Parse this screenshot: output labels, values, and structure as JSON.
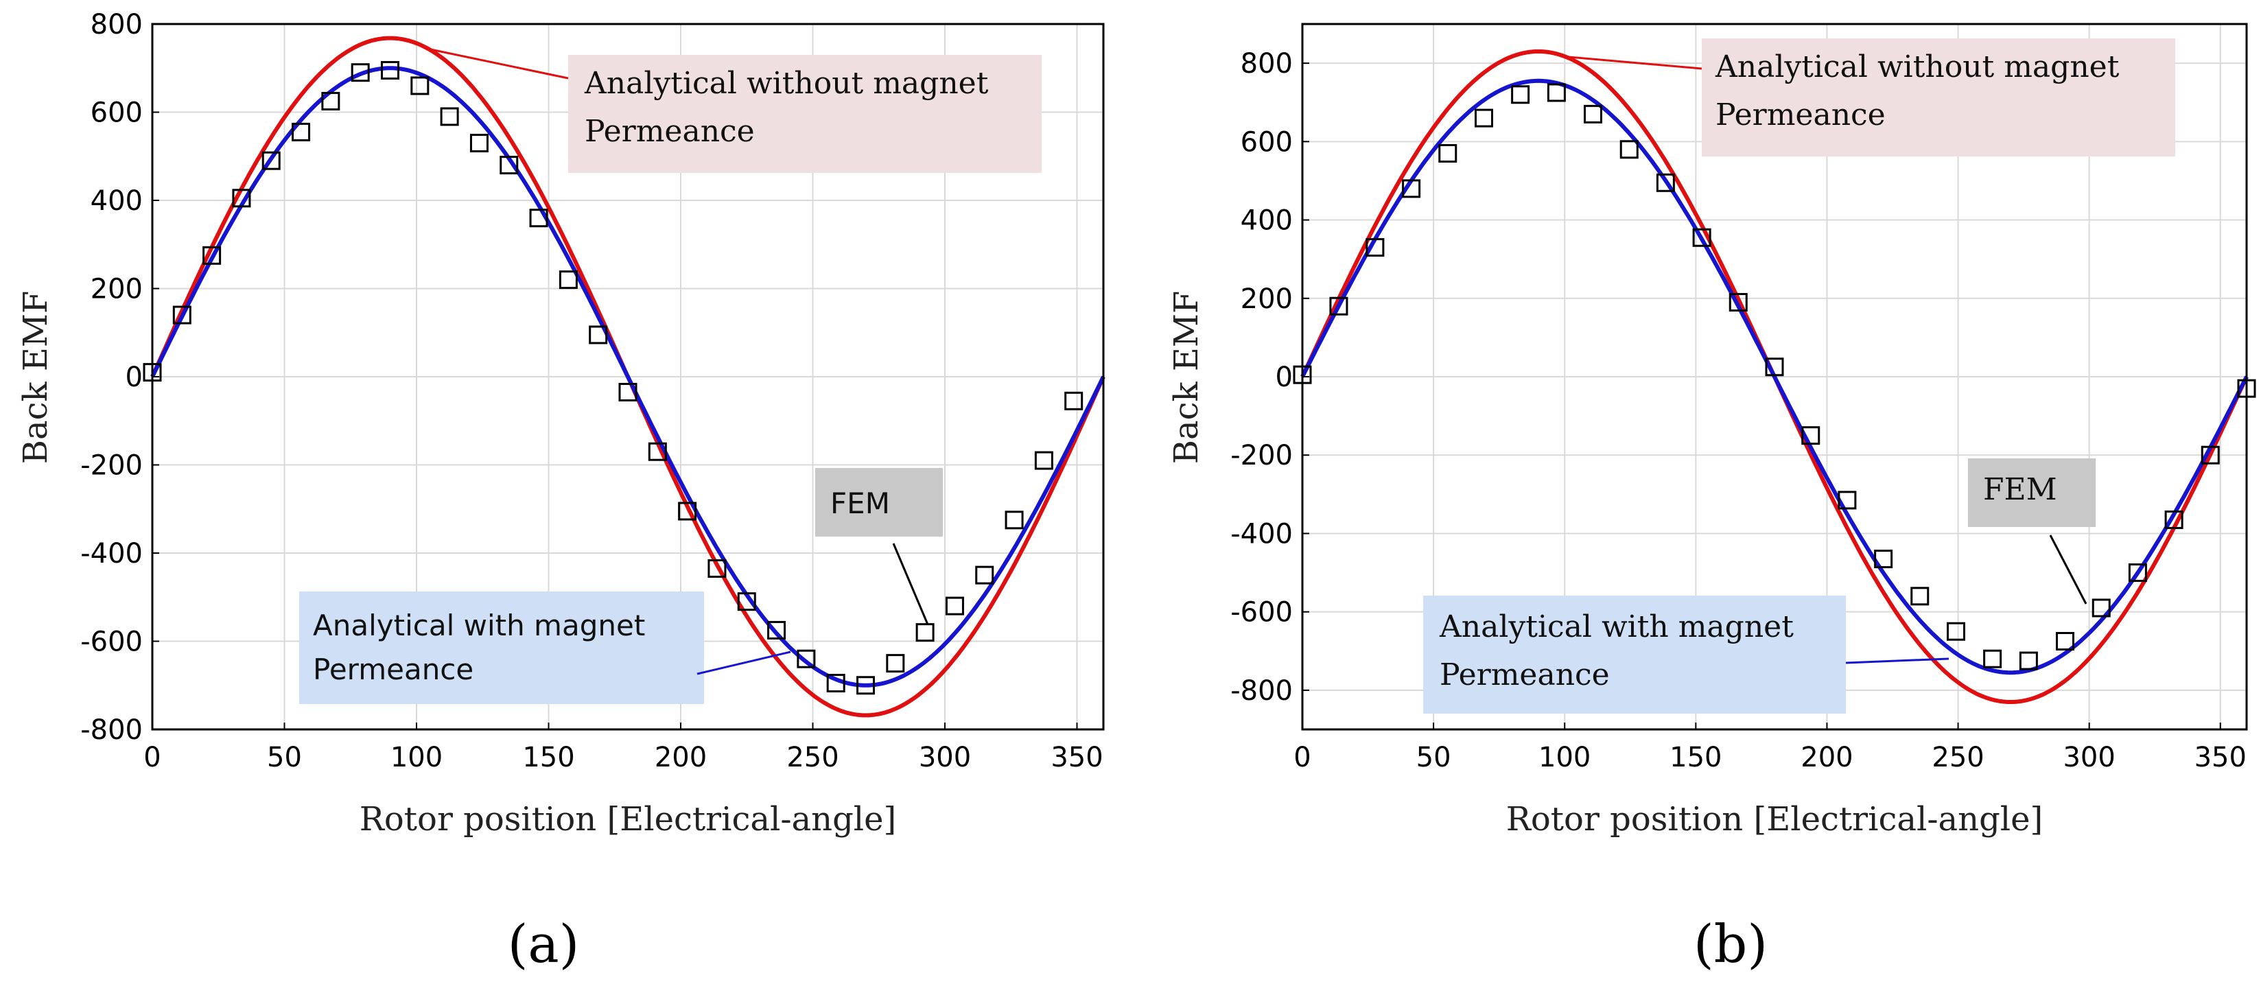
{
  "chart_data": [
    {
      "type": "line",
      "panel_label": "(a)",
      "xlabel": "Rotor position [Electrical-angle]",
      "ylabel": "Back EMF",
      "xlim": [
        0,
        360
      ],
      "ylim": [
        -800,
        800
      ],
      "xticks": [
        0,
        50,
        100,
        150,
        200,
        250,
        300,
        350
      ],
      "yticks": [
        -800,
        -600,
        -400,
        -200,
        0,
        200,
        400,
        600,
        800
      ],
      "grid": true,
      "series": [
        {
          "name": "Analytical without magnet Permeance",
          "color": "#e01010",
          "amplitude": 768
        },
        {
          "name": "Analytical with magnet Permeance",
          "color": "#1515d0",
          "amplitude": 700
        },
        {
          "name": "FEM",
          "marker": "square",
          "x": [
            0,
            11.25,
            22.5,
            33.75,
            45,
            56.25,
            67.5,
            78.75,
            90,
            101.25,
            112.5,
            123.75,
            135,
            146.25,
            157.5,
            168.75,
            180,
            191.25,
            202.5,
            213.75,
            225,
            236.25,
            247.5,
            258.75,
            270,
            281.25,
            292.5,
            303.75,
            315,
            326.25,
            337.5,
            348.75
          ],
          "y": [
            10,
            140,
            275,
            405,
            490,
            555,
            625,
            690,
            695,
            660,
            590,
            530,
            480,
            360,
            220,
            95,
            -35,
            -170,
            -305,
            -435,
            -510,
            -575,
            -640,
            -695,
            -700,
            -650,
            -580,
            -520,
            -450,
            -325,
            -190,
            -55
          ]
        }
      ],
      "annotations": {
        "without_line1": "Analytical without magnet",
        "without_line2": "Permeance",
        "with_line1": "Analytical with magnet",
        "with_line2": "Permeance",
        "fem": "FEM"
      }
    },
    {
      "type": "line",
      "panel_label": "(b)",
      "xlabel": "Rotor position [Electrical-angle]",
      "ylabel": "Back EMF",
      "xlim": [
        0,
        360
      ],
      "ylim": [
        -900,
        900
      ],
      "xticks": [
        0,
        50,
        100,
        150,
        200,
        250,
        300,
        350
      ],
      "yticks": [
        -800,
        -600,
        -400,
        -200,
        0,
        200,
        400,
        600,
        800
      ],
      "grid": true,
      "series": [
        {
          "name": "Analytical without magnet Permeance",
          "color": "#e01010",
          "amplitude": 830
        },
        {
          "name": "Analytical with magnet Permeance",
          "color": "#1515d0",
          "amplitude": 755
        },
        {
          "name": "FEM",
          "marker": "square",
          "x": [
            0,
            13.85,
            27.7,
            41.5,
            55.4,
            69.2,
            83.1,
            96.9,
            110.8,
            124.6,
            138.5,
            152.3,
            166.2,
            180,
            193.8,
            207.7,
            221.5,
            235.4,
            249.2,
            263.1,
            276.9,
            290.8,
            304.6,
            318.5,
            332.3,
            346.2,
            360
          ],
          "y": [
            5,
            180,
            330,
            480,
            570,
            660,
            720,
            725,
            670,
            580,
            495,
            355,
            190,
            25,
            -150,
            -315,
            -465,
            -560,
            -650,
            -720,
            -725,
            -675,
            -590,
            -500,
            -365,
            -200,
            -30
          ]
        }
      ],
      "annotations": {
        "without_line1": "Analytical without magnet",
        "without_line2": "Permeance",
        "with_line1": "Analytical with magnet",
        "with_line2": "Permeance",
        "fem": "FEM"
      }
    }
  ]
}
